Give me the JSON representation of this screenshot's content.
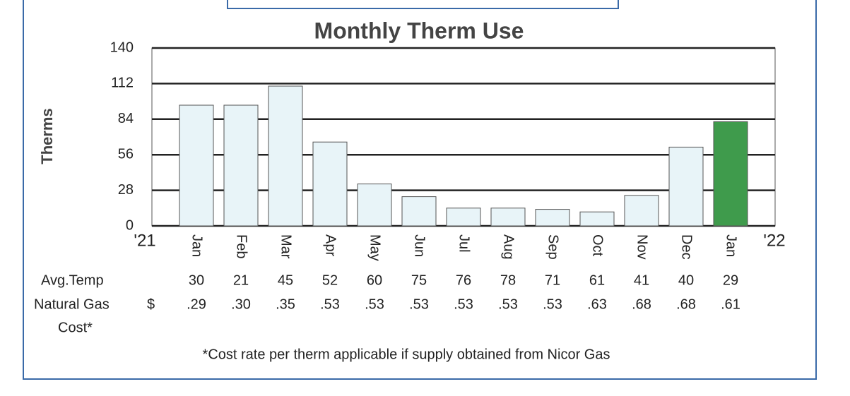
{
  "chart_data": {
    "type": "bar",
    "title": "Monthly Therm Use",
    "y_label": "Therms",
    "categories": [
      "Jan",
      "Feb",
      "Mar",
      "Apr",
      "May",
      "Jun",
      "Jul",
      "Aug",
      "Sep",
      "Oct",
      "Nov",
      "Dec",
      "Jan"
    ],
    "values": [
      95,
      95,
      110,
      66,
      33,
      23,
      14,
      14,
      13,
      11,
      24,
      62,
      82
    ],
    "colors": [
      "#e8f4f8",
      "#e8f4f8",
      "#e8f4f8",
      "#e8f4f8",
      "#e8f4f8",
      "#e8f4f8",
      "#e8f4f8",
      "#e8f4f8",
      "#e8f4f8",
      "#e8f4f8",
      "#e8f4f8",
      "#e8f4f8",
      "#3f9b4c"
    ],
    "ylim": [
      0,
      140
    ],
    "yticks": [
      0,
      28,
      56,
      84,
      112,
      140
    ],
    "grid": true,
    "year_labels": [
      "'21",
      "'22"
    ],
    "avg_temp": {
      "label": "Avg.Temp",
      "values": [
        30,
        21,
        45,
        52,
        60,
        75,
        76,
        78,
        71,
        61,
        41,
        40,
        29
      ]
    },
    "gas_cost": {
      "label_lines": [
        "Natural Gas",
        "Cost*"
      ],
      "currency": "$",
      "values": [
        0.29,
        0.3,
        0.35,
        0.53,
        0.53,
        0.53,
        0.53,
        0.53,
        0.53,
        0.63,
        0.68,
        0.68,
        0.61
      ],
      "value_labels": [
        ".29",
        ".30",
        ".35",
        ".53",
        ".53",
        ".53",
        ".53",
        ".53",
        ".53",
        ".63",
        ".68",
        ".68",
        ".61"
      ]
    },
    "footnote": "*Cost rate per therm applicable if supply obtained from Nicor Gas"
  }
}
